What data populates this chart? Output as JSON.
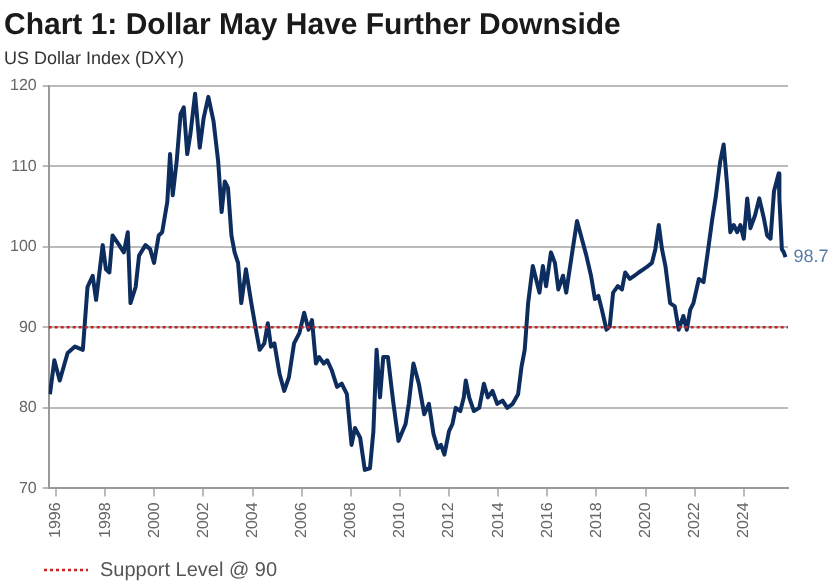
{
  "chart_data": {
    "type": "line",
    "title": "Chart 1: Dollar May Have Further Downside",
    "subtitle": "US Dollar Index (DXY)",
    "xlim": [
      1995.7,
      2025.8
    ],
    "xticks": [
      1996,
      1998,
      2000,
      2002,
      2004,
      2006,
      2008,
      2010,
      2012,
      2014,
      2016,
      2018,
      2020,
      2022,
      2024
    ],
    "ylim": [
      70,
      120
    ],
    "yticks": [
      70,
      80,
      90,
      100,
      110,
      120
    ],
    "grid": "y",
    "legend": "bottom",
    "marker": "none",
    "line_style": "solid",
    "ref_lines": [
      {
        "axis": "y",
        "value": 90,
        "label": "Support Level @ 90",
        "color": "#cc1f1f",
        "line_style": "dotted"
      }
    ],
    "annotations": [
      {
        "text": "98.7",
        "x": 2025.7,
        "y": 98.7
      }
    ],
    "series": [
      {
        "color": "#0d2d5e",
        "x": [
          1995.75,
          1995.93,
          1996.15,
          1996.47,
          1996.77,
          1997.09,
          1997.28,
          1997.49,
          1997.63,
          1997.9,
          1998.03,
          1998.17,
          1998.3,
          1998.57,
          1998.76,
          1998.92,
          1999.03,
          1999.24,
          1999.38,
          1999.64,
          1999.83,
          1999.99,
          2000.18,
          2000.32,
          2000.53,
          2000.64,
          2000.75,
          2000.91,
          2001.07,
          2001.2,
          2001.34,
          2001.47,
          2001.66,
          2001.85,
          2002.01,
          2002.2,
          2002.41,
          2002.6,
          2002.74,
          2002.87,
          2003.0,
          2003.14,
          2003.27,
          2003.41,
          2003.54,
          2003.73,
          2003.95,
          2004.16,
          2004.29,
          2004.48,
          2004.62,
          2004.75,
          2004.89,
          2005.1,
          2005.29,
          2005.48,
          2005.69,
          2005.91,
          2006.1,
          2006.28,
          2006.42,
          2006.58,
          2006.71,
          2006.9,
          2007.04,
          2007.22,
          2007.44,
          2007.63,
          2007.84,
          2008.03,
          2008.17,
          2008.38,
          2008.57,
          2008.78,
          2008.92,
          2009.05,
          2009.19,
          2009.32,
          2009.51,
          2009.72,
          2009.94,
          2010.23,
          2010.36,
          2010.55,
          2010.77,
          2010.99,
          2011.18,
          2011.37,
          2011.54,
          2011.67,
          2011.81,
          2012.0,
          2012.14,
          2012.27,
          2012.46,
          2012.6,
          2012.68,
          2012.82,
          2013.01,
          2013.23,
          2013.42,
          2013.58,
          2013.77,
          2013.96,
          2014.18,
          2014.37,
          2014.59,
          2014.81,
          2014.95,
          2015.08,
          2015.22,
          2015.41,
          2015.55,
          2015.68,
          2015.82,
          2015.95,
          2016.15,
          2016.31,
          2016.45,
          2016.64,
          2016.77,
          2016.91,
          2017.1,
          2017.21,
          2017.37,
          2017.59,
          2017.78,
          2017.94,
          2018.08,
          2018.22,
          2018.41,
          2018.54,
          2018.68,
          2018.87,
          2019.04,
          2019.17,
          2019.36,
          2019.55,
          2019.72,
          2019.91,
          2020.1,
          2020.26,
          2020.4,
          2020.54,
          2020.67,
          2020.81,
          2021.0,
          2021.19,
          2021.35,
          2021.54,
          2021.68,
          2021.82,
          2021.95,
          2022.17,
          2022.36,
          2022.55,
          2022.72,
          2022.85,
          2023.04,
          2023.18,
          2023.32,
          2023.45,
          2023.59,
          2023.73,
          2023.86,
          2024.0,
          2024.14,
          2024.27,
          2024.46,
          2024.63,
          2024.82,
          2024.95,
          2025.09,
          2025.23,
          2025.42,
          2025.45,
          2025.55,
          2025.63,
          2025.7
        ],
        "values": [
          81.7,
          85.9,
          83.4,
          86.8,
          87.6,
          87.2,
          95,
          96.4,
          93.4,
          100.2,
          97.2,
          96.8,
          101.4,
          100.2,
          99.3,
          101.8,
          93,
          95,
          98.9,
          100.2,
          99.7,
          98,
          101.4,
          101.8,
          105.6,
          111.5,
          106.4,
          110.6,
          116.5,
          117.3,
          111.5,
          114,
          119,
          112.3,
          116,
          118.6,
          115.6,
          110.6,
          104.3,
          108.1,
          107.3,
          101.4,
          99.3,
          98,
          93,
          97.2,
          93,
          89.3,
          87.2,
          88,
          90.5,
          87.6,
          88,
          84.2,
          82.1,
          83.8,
          88,
          89.3,
          91.8,
          89.7,
          90.9,
          85.5,
          86.3,
          85.5,
          85.9,
          84.7,
          82.6,
          83,
          81.7,
          75.4,
          77.5,
          76.3,
          72.3,
          72.5,
          77.1,
          87.2,
          81.3,
          86.3,
          86.3,
          80.9,
          75.9,
          78,
          80.5,
          85.5,
          83,
          79.2,
          80.5,
          76.7,
          75,
          75.4,
          74.2,
          77.1,
          78,
          80,
          79.6,
          81.3,
          83.4,
          81.3,
          79.6,
          80,
          83,
          81.3,
          82.1,
          80.5,
          80.9,
          80,
          80.5,
          81.7,
          85.1,
          87.2,
          93,
          97.6,
          95.9,
          94.3,
          97.6,
          95.1,
          99.3,
          98,
          94.7,
          96.4,
          94.3,
          97.2,
          101,
          103.2,
          101.4,
          98.9,
          96.4,
          93.5,
          93.9,
          92.2,
          89.7,
          90.1,
          94.3,
          95.1,
          94.7,
          96.8,
          96,
          96.4,
          96.8,
          97.2,
          97.6,
          98,
          99.7,
          102.7,
          99.7,
          97.6,
          93,
          92.6,
          89.7,
          91.4,
          89.7,
          92.2,
          93,
          96,
          95.6,
          99.7,
          103.5,
          106,
          110.6,
          112.7,
          107.7,
          101.8,
          102.7,
          101.8,
          102.7,
          101,
          106,
          102.3,
          103.9,
          106,
          103.5,
          101.4,
          101,
          106.9,
          109.1,
          106,
          99.7,
          99.3,
          98.7
        ]
      }
    ]
  }
}
